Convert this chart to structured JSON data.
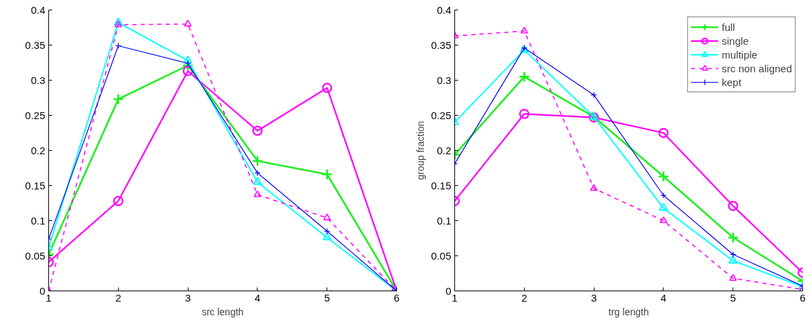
{
  "chart_data": [
    {
      "type": "line",
      "xlabel": "src length",
      "x": [
        1,
        2,
        3,
        4,
        5,
        6
      ],
      "xlim": [
        1,
        6
      ],
      "ylim": [
        0,
        0.4
      ],
      "xticks": [
        1,
        2,
        3,
        4,
        5,
        6
      ],
      "yticks": [
        0,
        0.05,
        0.1,
        0.15,
        0.2,
        0.25,
        0.3,
        0.35,
        0.4
      ],
      "grid": false,
      "legend": false,
      "series": [
        {
          "color": "#22ee22",
          "marker": "cross",
          "line_style": "solid",
          "values": [
            0.052,
            0.273,
            0.321,
            0.185,
            0.166,
            0
          ]
        },
        {
          "color": "#ff00ff",
          "marker": "circle",
          "line_style": "solid",
          "values": [
            0.041,
            0.128,
            0.313,
            0.228,
            0.289,
            0
          ]
        },
        {
          "color": "#00ffff",
          "marker": "triangle",
          "line_style": "solid",
          "values": [
            0.062,
            0.382,
            0.328,
            0.155,
            0.076,
            0
          ]
        },
        {
          "color": "#ff00ff",
          "marker": "triangle",
          "line_style": "dashed",
          "values": [
            0,
            0.379,
            0.38,
            0.137,
            0.104,
            0
          ]
        },
        {
          "color": "#0000ff",
          "marker": "cross",
          "line_style": "solid",
          "values": [
            0.074,
            0.349,
            0.324,
            0.168,
            0.085,
            0
          ]
        }
      ]
    },
    {
      "type": "line",
      "xlabel": "trg length",
      "ylabel": "group fraction",
      "x": [
        1,
        2,
        3,
        4,
        5,
        6
      ],
      "xlim": [
        1,
        6
      ],
      "ylim": [
        0,
        0.4
      ],
      "xticks": [
        1,
        2,
        3,
        4,
        5,
        6
      ],
      "yticks": [
        0,
        0.05,
        0.1,
        0.15,
        0.2,
        0.25,
        0.3,
        0.35,
        0.4
      ],
      "grid": false,
      "legend": "top right",
      "series": [
        {
          "name": "full",
          "color": "#22ee22",
          "marker": "cross",
          "line_style": "solid",
          "values": [
            0.194,
            0.305,
            0.248,
            0.163,
            0.076,
            0.014
          ]
        },
        {
          "name": "single",
          "color": "#ff00ff",
          "marker": "circle",
          "line_style": "solid",
          "values": [
            0.128,
            0.252,
            0.247,
            0.225,
            0.121,
            0.026
          ]
        },
        {
          "name": "multiple",
          "color": "#00ffff",
          "marker": "triangle",
          "line_style": "solid",
          "values": [
            0.24,
            0.343,
            0.248,
            0.118,
            0.043,
            0.006
          ]
        },
        {
          "name": "src non aligned",
          "color": "#ff00ff",
          "marker": "triangle",
          "line_style": "dashed",
          "values": [
            0.363,
            0.37,
            0.146,
            0.1,
            0.018,
            0.002
          ]
        },
        {
          "name": "kept",
          "color": "#0000ff",
          "marker": "cross",
          "line_style": "solid",
          "values": [
            0.181,
            0.346,
            0.279,
            0.136,
            0.052,
            0.007
          ]
        }
      ]
    }
  ]
}
